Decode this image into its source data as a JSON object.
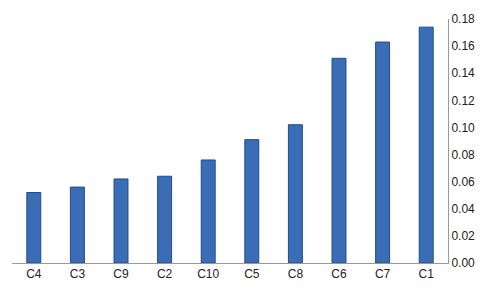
{
  "chart_data": {
    "type": "bar",
    "categories": [
      "C4",
      "C3",
      "C9",
      "C2",
      "C10",
      "C5",
      "C8",
      "C6",
      "C7",
      "C1"
    ],
    "values": [
      0.052,
      0.056,
      0.062,
      0.064,
      0.076,
      0.091,
      0.102,
      0.151,
      0.163,
      0.174
    ],
    "color": "#3a6db5",
    "ylim": [
      0,
      0.18
    ],
    "yticks": [
      {
        "value": 0,
        "label": "0.00"
      },
      {
        "value": 0.02,
        "label": "0.02"
      },
      {
        "value": 0.04,
        "label": "0.04"
      },
      {
        "value": 0.06,
        "label": "0.06"
      },
      {
        "value": 0.08,
        "label": "0.08"
      },
      {
        "value": 0.1,
        "label": "0.10"
      },
      {
        "value": 0.12,
        "label": "0.12"
      },
      {
        "value": 0.14,
        "label": "0.14"
      },
      {
        "value": 0.16,
        "label": "0.16"
      },
      {
        "value": 0.18,
        "label": "0.18"
      }
    ],
    "grid": false
  }
}
